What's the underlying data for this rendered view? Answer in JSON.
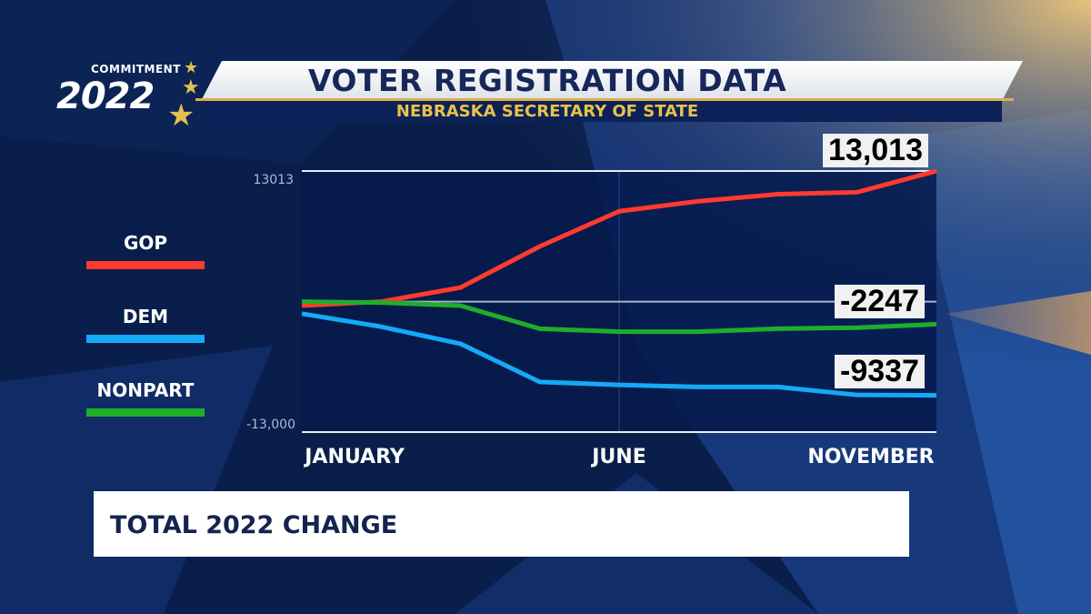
{
  "header": {
    "title": "VOTER REGISTRATION DATA",
    "subtitle": "NEBRASKA SECRETARY OF STATE"
  },
  "logo": {
    "small": "COMMITMENT",
    "big": "2022"
  },
  "footer": {
    "text": "TOTAL 2022 CHANGE"
  },
  "colors": {
    "background": "#0a1e4c",
    "gop": "#ff3a2e",
    "dem": "#14aaf5",
    "nonpart": "#1fae2a"
  },
  "chart_data": {
    "type": "line",
    "title": "VOTER REGISTRATION DATA",
    "x_tick_labels": [
      "JANUARY",
      "JUNE",
      "NOVEMBER"
    ],
    "y_tick_labels": [
      "13013",
      "-13,000"
    ],
    "ylim": [
      -13000,
      13013
    ],
    "grid": "horizontal at top, zero and bottom",
    "legend": "left",
    "series": [
      {
        "name": "GOP",
        "color": "#ff3a2e",
        "values": [
          -400,
          0,
          1400,
          5500,
          9000,
          10000,
          10700,
          10900,
          13013
        ],
        "end_label": "13,013"
      },
      {
        "name": "DEM",
        "color": "#14aaf5",
        "values": [
          -1200,
          -2500,
          -4200,
          -8000,
          -8300,
          -8500,
          -8500,
          -9300,
          -9337
        ],
        "end_label": "-9337"
      },
      {
        "name": "NONPART",
        "color": "#1fae2a",
        "values": [
          0,
          -100,
          -400,
          -2700,
          -3000,
          -3000,
          -2700,
          -2600,
          -2247
        ],
        "end_label": "-2247"
      }
    ]
  }
}
